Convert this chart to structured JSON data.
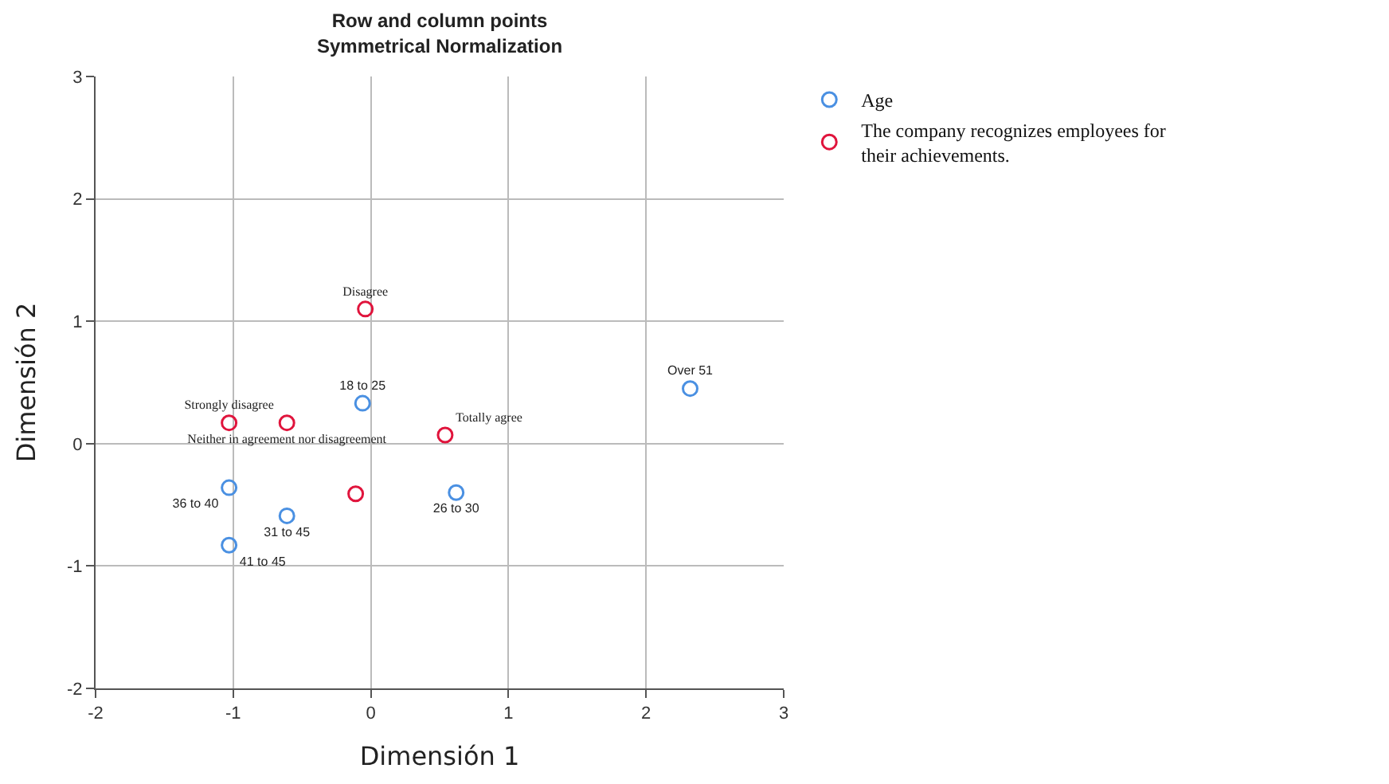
{
  "chart_data": {
    "type": "scatter",
    "title": "Row and column points",
    "subtitle": "Symmetrical Normalization",
    "xlabel": "Dimensión 1",
    "ylabel": "Dimensión 2",
    "xlim": [
      -2,
      3
    ],
    "xticks": [
      -2,
      -1,
      0,
      1,
      2,
      3
    ],
    "ylim": [
      -2,
      3
    ],
    "yticks": [
      -2,
      -1,
      0,
      1,
      2,
      3
    ],
    "grid": true,
    "legend": "top right",
    "marker": "circle",
    "series": [
      {
        "name": "Age",
        "color": "#4a90e2",
        "x": [
          -0.06,
          0.62,
          -1.03,
          -0.61,
          -1.03,
          2.32
        ],
        "values": [
          0.33,
          -0.4,
          -0.36,
          -0.59,
          -0.83,
          0.45
        ],
        "value_labels": [
          "18 to 25",
          "26 to 30",
          "36 to 40",
          "31 to 45",
          "41 to 45",
          "Over 51"
        ]
      },
      {
        "name": "The company recognizes employees for their achievements.",
        "color": "#e0143c",
        "x": [
          -0.04,
          -1.03,
          -0.61,
          0.54,
          -0.11
        ],
        "values": [
          1.1,
          0.17,
          0.17,
          0.07,
          -0.41
        ],
        "value_labels": [
          "Disagree",
          "Strongly disagree",
          "Neither in agreement nor disagreement",
          "Totally agree",
          null
        ]
      }
    ]
  }
}
